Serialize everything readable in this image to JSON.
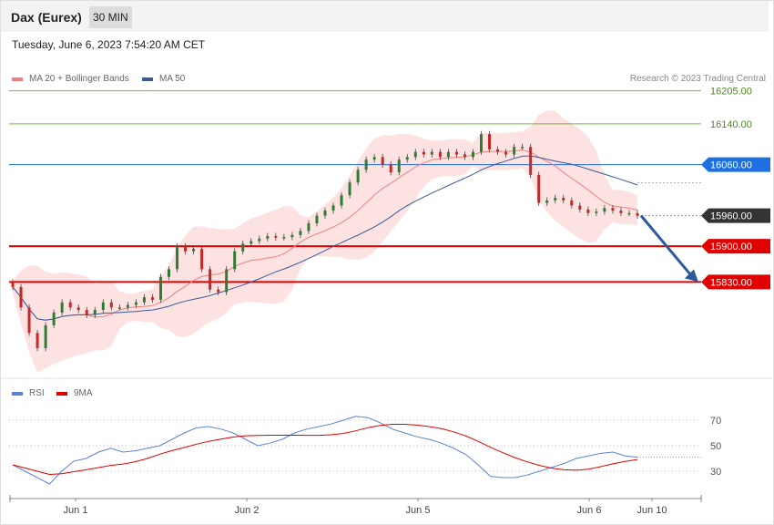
{
  "header": {
    "title": "Dax (Eurex)",
    "timeframe": "30 MIN"
  },
  "date_line": "Tuesday, June 6, 2023 7:54:20 AM CET",
  "legend": {
    "ma20_bb": "MA 20 + Bollinger Bands",
    "ma50": "MA 50",
    "rsi": "RSI",
    "ma9": "9MA"
  },
  "copyright": "Research © 2023 Trading Central",
  "colors": {
    "up": "#2e7d32",
    "down": "#c62828",
    "resistance": "#7cb342",
    "pivot": "#1e6fe0",
    "support": "#e00000",
    "last": "#333333",
    "ma50": "#3b5998",
    "ma20": "#f08080",
    "band": "#fde2e2",
    "rsi": "#5b82d6",
    "ma9": "#e00000",
    "arrow": "#2a5a9c"
  },
  "chart_data": [
    {
      "type": "candlestick",
      "x_labels": [
        "Jun 1",
        "Jun 2",
        "Jun 5",
        "Jun 6",
        "Jun 10"
      ],
      "ylim": [
        15650,
        16240
      ],
      "levels": [
        {
          "value": 16205,
          "label": "16205.00",
          "kind": "resistance"
        },
        {
          "value": 16140,
          "label": "16140.00",
          "kind": "resistance"
        },
        {
          "value": 16060,
          "label": "16060.00",
          "kind": "pivot"
        },
        {
          "value": 15960,
          "label": "15960.00",
          "kind": "last"
        },
        {
          "value": 15900,
          "label": "15900.00",
          "kind": "support"
        },
        {
          "value": 15830,
          "label": "15830.00",
          "kind": "support"
        }
      ],
      "closes": [
        15820,
        15780,
        15730,
        15700,
        15745,
        15770,
        15790,
        15780,
        15775,
        15765,
        15775,
        15790,
        15780,
        15780,
        15785,
        15790,
        15800,
        15795,
        15840,
        15855,
        15900,
        15890,
        15895,
        15855,
        15815,
        15810,
        15855,
        15890,
        15905,
        15910,
        15915,
        15920,
        15917,
        15918,
        15922,
        15930,
        15945,
        15960,
        15970,
        15980,
        16000,
        16025,
        16050,
        16070,
        16075,
        16060,
        16045,
        16070,
        16075,
        16085,
        16080,
        16085,
        16075,
        16085,
        16080,
        16075,
        16085,
        16120,
        16090,
        16085,
        16080,
        16095,
        16095,
        16040,
        15985,
        15990,
        15995,
        15990,
        15980,
        15972,
        15965,
        15968,
        15975,
        15970,
        15965,
        15965,
        15960
      ]
    },
    {
      "type": "line",
      "name": "RSI",
      "ylim": [
        10,
        85
      ],
      "ticks": [
        70,
        50,
        30
      ],
      "values": [
        35,
        30,
        25,
        20,
        30,
        38,
        40,
        45,
        48,
        45,
        46,
        48,
        50,
        55,
        60,
        64,
        65,
        63,
        60,
        55,
        50,
        52,
        55,
        60,
        63,
        65,
        67,
        70,
        73,
        72,
        68,
        63,
        60,
        57,
        55,
        52,
        48,
        43,
        35,
        26,
        25,
        25,
        27,
        30,
        33,
        36,
        40,
        42,
        44,
        45,
        42,
        41
      ]
    }
  ]
}
